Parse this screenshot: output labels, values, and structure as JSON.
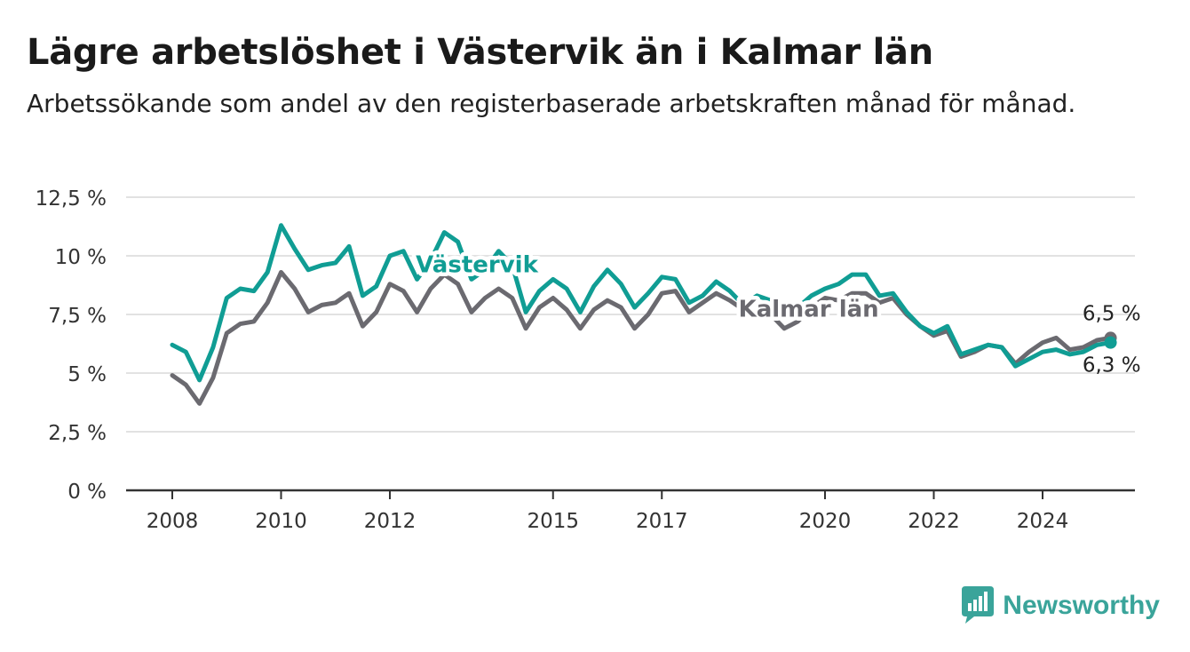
{
  "title": "Lägre arbetslöshet i Västervik än i Kalmar län",
  "subtitle": "Arbetssökande som andel av den registerbaserade arbetskraften månad för månad.",
  "brand": {
    "name": "Newsworthy",
    "color": "#3aa49a"
  },
  "chart_data": {
    "type": "line",
    "xlabel": "",
    "ylabel": "",
    "xlim": [
      2008,
      2025.6
    ],
    "ylim": [
      0,
      12.5
    ],
    "x_ticks": [
      2008,
      2010,
      2012,
      2015,
      2017,
      2020,
      2022,
      2024
    ],
    "x_tick_labels": [
      "2008",
      "2010",
      "2012",
      "2015",
      "2017",
      "2020",
      "2022",
      "2024"
    ],
    "y_ticks": [
      0,
      2.5,
      5,
      7.5,
      10,
      12.5
    ],
    "y_tick_labels": [
      "0 %",
      "2,5 %",
      "5 %",
      "7,5 %",
      "10 %",
      "12,5 %"
    ],
    "grid": true,
    "series": [
      {
        "name": "Kalmar län",
        "color": "#6b6a70",
        "end_label": "6,5 %",
        "x": [
          2008.0,
          2008.25,
          2008.5,
          2008.75,
          2009.0,
          2009.25,
          2009.5,
          2009.75,
          2010.0,
          2010.25,
          2010.5,
          2010.75,
          2011.0,
          2011.25,
          2011.5,
          2011.75,
          2012.0,
          2012.25,
          2012.5,
          2012.75,
          2013.0,
          2013.25,
          2013.5,
          2013.75,
          2014.0,
          2014.25,
          2014.5,
          2014.75,
          2015.0,
          2015.25,
          2015.5,
          2015.75,
          2016.0,
          2016.25,
          2016.5,
          2016.75,
          2017.0,
          2017.25,
          2017.5,
          2017.75,
          2018.0,
          2018.25,
          2018.5,
          2018.75,
          2019.0,
          2019.25,
          2019.5,
          2019.75,
          2020.0,
          2020.25,
          2020.5,
          2020.75,
          2021.0,
          2021.25,
          2021.5,
          2021.75,
          2022.0,
          2022.25,
          2022.5,
          2022.75,
          2023.0,
          2023.25,
          2023.5,
          2023.75,
          2024.0,
          2024.25,
          2024.5,
          2024.75,
          2025.0,
          2025.25
        ],
        "values": [
          4.9,
          4.5,
          3.7,
          4.8,
          6.7,
          7.1,
          7.2,
          8.0,
          9.3,
          8.6,
          7.6,
          7.9,
          8.0,
          8.4,
          7.0,
          7.6,
          8.8,
          8.5,
          7.6,
          8.6,
          9.2,
          8.8,
          7.6,
          8.2,
          8.6,
          8.2,
          6.9,
          7.8,
          8.2,
          7.7,
          6.9,
          7.7,
          8.1,
          7.8,
          6.9,
          7.5,
          8.4,
          8.5,
          7.6,
          8.0,
          8.4,
          8.1,
          7.7,
          8.0,
          7.5,
          6.9,
          7.2,
          7.8,
          8.2,
          8.1,
          8.4,
          8.4,
          8.0,
          8.2,
          7.5,
          7.0,
          6.6,
          6.8,
          5.7,
          5.9,
          6.2,
          6.1,
          5.4,
          5.9,
          6.3,
          6.5,
          6.0,
          6.1,
          6.4,
          6.5
        ]
      },
      {
        "name": "Västervik",
        "color": "#109d94",
        "end_label": "6,3 %",
        "x": [
          2008.0,
          2008.25,
          2008.5,
          2008.75,
          2009.0,
          2009.25,
          2009.5,
          2009.75,
          2010.0,
          2010.25,
          2010.5,
          2010.75,
          2011.0,
          2011.25,
          2011.5,
          2011.75,
          2012.0,
          2012.25,
          2012.5,
          2012.75,
          2013.0,
          2013.25,
          2013.5,
          2013.75,
          2014.0,
          2014.25,
          2014.5,
          2014.75,
          2015.0,
          2015.25,
          2015.5,
          2015.75,
          2016.0,
          2016.25,
          2016.5,
          2016.75,
          2017.0,
          2017.25,
          2017.5,
          2017.75,
          2018.0,
          2018.25,
          2018.5,
          2018.75,
          2019.0,
          2019.25,
          2019.5,
          2019.75,
          2020.0,
          2020.25,
          2020.5,
          2020.75,
          2021.0,
          2021.25,
          2021.5,
          2021.75,
          2022.0,
          2022.25,
          2022.5,
          2022.75,
          2023.0,
          2023.25,
          2023.5,
          2023.75,
          2024.0,
          2024.25,
          2024.5,
          2024.75,
          2025.0,
          2025.25
        ],
        "values": [
          6.2,
          5.9,
          4.7,
          6.1,
          8.2,
          8.6,
          8.5,
          9.3,
          11.3,
          10.3,
          9.4,
          9.6,
          9.7,
          10.4,
          8.3,
          8.7,
          10.0,
          10.2,
          9.0,
          9.8,
          11.0,
          10.6,
          9.0,
          9.4,
          10.2,
          9.6,
          7.6,
          8.5,
          9.0,
          8.6,
          7.6,
          8.7,
          9.4,
          8.8,
          7.8,
          8.4,
          9.1,
          9.0,
          8.0,
          8.3,
          8.9,
          8.5,
          7.9,
          8.3,
          8.1,
          7.7,
          7.8,
          8.3,
          8.6,
          8.8,
          9.2,
          9.2,
          8.3,
          8.4,
          7.6,
          7.0,
          6.7,
          7.0,
          5.8,
          6.0,
          6.2,
          6.1,
          5.3,
          5.6,
          5.9,
          6.0,
          5.8,
          5.9,
          6.2,
          6.3
        ]
      }
    ],
    "annotations": [
      {
        "text": "Västervik",
        "x": 2013.6,
        "y": 9.3,
        "series": "Västervik"
      },
      {
        "text": "Kalmar län",
        "x": 2019.7,
        "y": 7.4,
        "series": "Kalmar län"
      }
    ]
  }
}
